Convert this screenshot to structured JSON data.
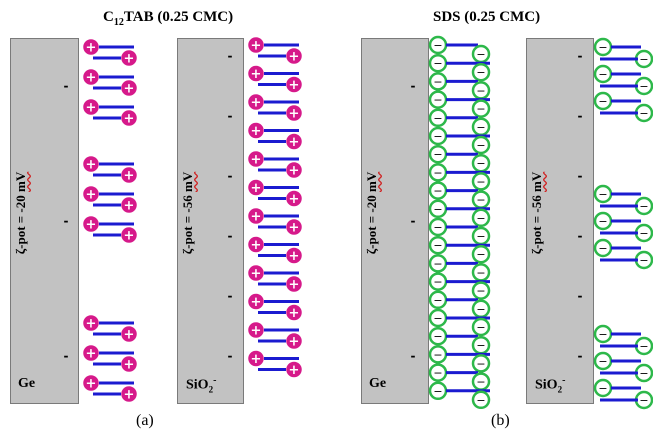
{
  "panel_a": {
    "title_main": "C",
    "title_sub": "12",
    "title_rest": "TAB (0.25 CMC)",
    "caption": "(a)",
    "slab1": {
      "zeta_prefix": "ζ-pot = -20 ",
      "zeta_unit": "mV",
      "material": "Ge"
    },
    "slab2": {
      "zeta_prefix": "ζ-pot = -56 ",
      "zeta_unit": "mV",
      "material_main": "SiO",
      "material_sub": "2",
      "material_sup": "-"
    }
  },
  "panel_b": {
    "title": "SDS (0.25 CMC)",
    "caption": "(b)",
    "slab1": {
      "zeta_prefix": "ζ-pot = -20 ",
      "zeta_unit": "mV",
      "material": "Ge"
    },
    "slab2": {
      "zeta_prefix": "ζ-pot = -56 ",
      "zeta_unit": "mV",
      "material_main": "SiO",
      "material_sub": "2",
      "material_sup": "-"
    }
  },
  "symbols": {
    "cation": "+",
    "anion": "−",
    "surface_charge": "-"
  },
  "colors": {
    "cation_head": "#d6198a",
    "anion_head": "#2db84a",
    "tail": "#1b1bd0",
    "slab": "#c2c2c2"
  }
}
